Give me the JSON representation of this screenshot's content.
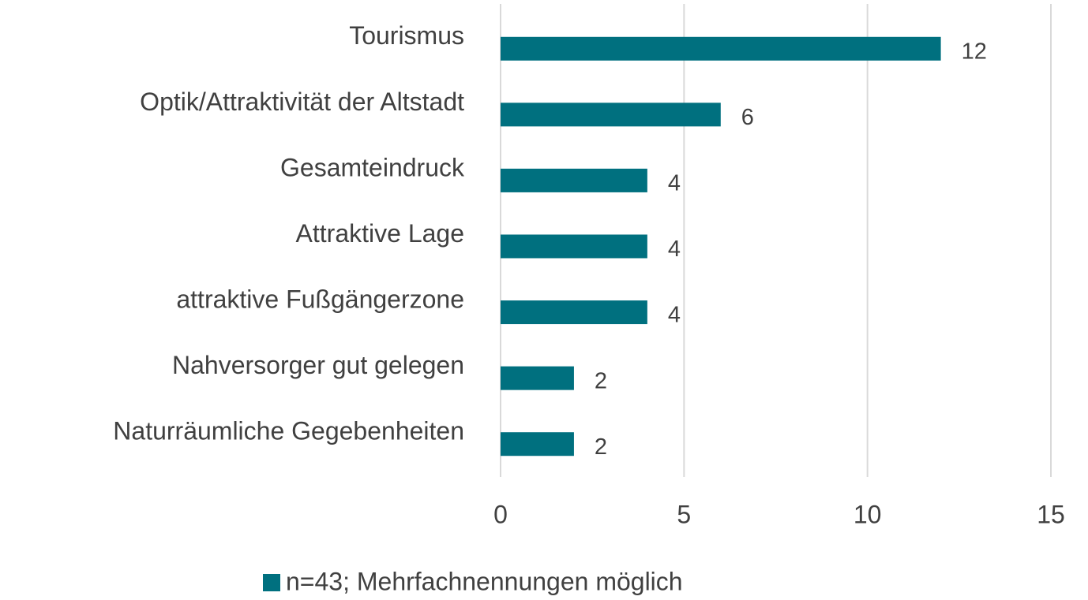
{
  "chart_data": {
    "type": "bar",
    "categories": [
      "Tourismus",
      "Optik/Attraktivität der Altstadt",
      "Gesamteindruck",
      "Attraktive Lage",
      "attraktive Fußgängerzone",
      "Nahversorger gut gelegen",
      "Naturräumliche Gegebenheiten"
    ],
    "series": [
      {
        "name": "n=43; Mehrfachnennungen möglich",
        "color": "#00707f",
        "values": [
          12,
          6,
          4,
          4,
          4,
          2,
          2
        ]
      }
    ],
    "xlim": [
      0,
      15
    ],
    "xticks": [
      0,
      5,
      10,
      15
    ],
    "grid": true,
    "legend": "bottom"
  }
}
